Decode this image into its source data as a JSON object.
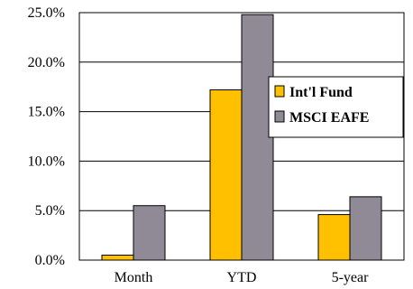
{
  "chart_data": {
    "type": "bar",
    "categories": [
      "Month",
      "YTD",
      "5-year"
    ],
    "series": [
      {
        "name": "Int'l Fund",
        "values": [
          0.5,
          17.2,
          4.6
        ],
        "color": "#FFC000"
      },
      {
        "name": "MSCI EAFE",
        "values": [
          5.5,
          24.8,
          6.4
        ],
        "color": "#8F8A96"
      }
    ],
    "y_ticks": [
      "0.0%",
      "5.0%",
      "10.0%",
      "15.0%",
      "20.0%",
      "25.0%"
    ],
    "ylim": [
      0,
      25
    ],
    "grid": true,
    "legend_position": "right"
  }
}
